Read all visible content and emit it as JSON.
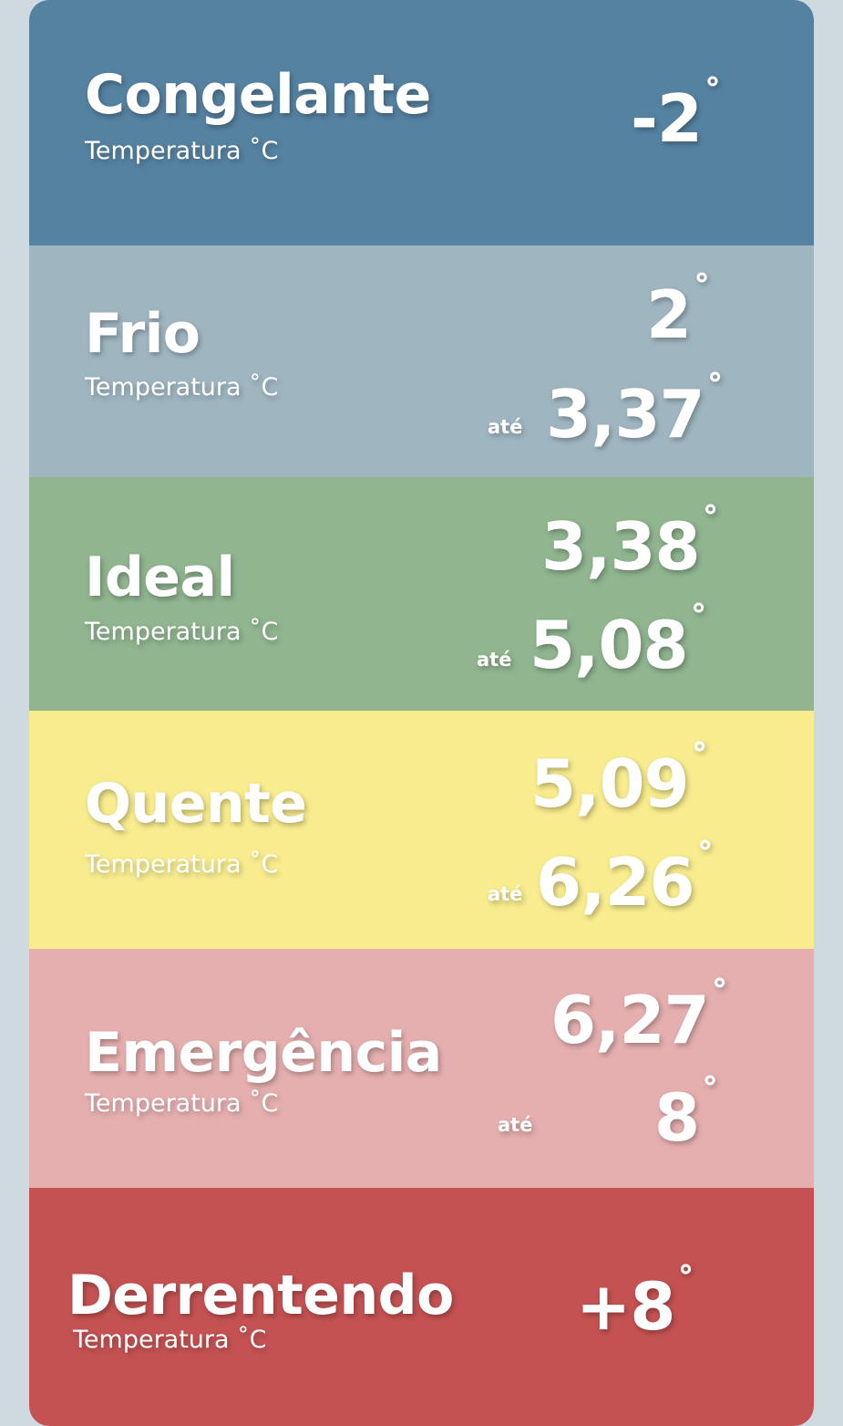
{
  "subtitle": "Temperatura ˚C",
  "ate": "até",
  "deg": "˚",
  "colors": {
    "congelante": "#5582a1",
    "frio": "#9fb6c1",
    "ideal": "#90b58f",
    "quente": "#f8ec8f",
    "emergencia": "#e6afaf",
    "derrentendo": "#c55252"
  },
  "bands": {
    "congelante": {
      "title": "Congelante",
      "value": "-2"
    },
    "frio": {
      "title": "Frio",
      "from": "2",
      "to": "3,37"
    },
    "ideal": {
      "title": "Ideal",
      "from": "3,38",
      "to": "5,08"
    },
    "quente": {
      "title": "Quente",
      "from": "5,09",
      "to": "6,26"
    },
    "emergencia": {
      "title": "Emergência",
      "from": "6,27",
      "to": "8"
    },
    "derrentendo": {
      "title": "Derrentendo",
      "value": "+8"
    }
  }
}
